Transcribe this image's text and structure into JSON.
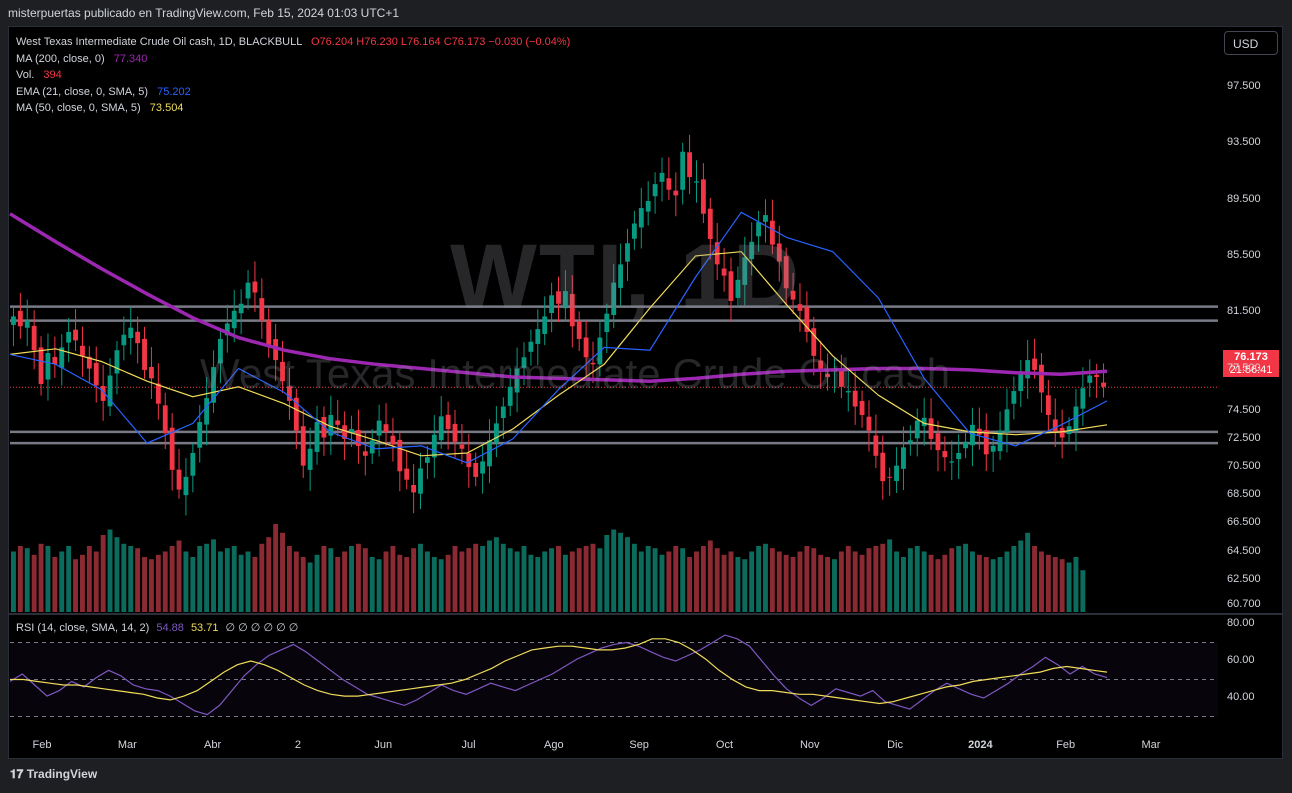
{
  "header": {
    "publish_line": "misterpuertas publicado en TradingView.com, Feb 15, 2024 01:03 UTC+1"
  },
  "legend": {
    "symbol_line": "West Texas Intermediate Crude Oil cash, 1D, BLACKBULL",
    "ohlc": "O76.204  H76.230  L76.164  C76.173  −0.030 (−0.04%)",
    "ma200_label": "MA (200, close, 0)",
    "ma200_value": "77.340",
    "vol_label": "Vol.",
    "vol_value": "394",
    "ema21_label": "EMA (21, close, 0, SMA, 5)",
    "ema21_value": "75.202",
    "ma50_label": "MA (50, close, 0, SMA, 5)",
    "ma50_value": "73.504"
  },
  "currency_button": "USD",
  "watermark": {
    "ticker": "WTI, 1D",
    "name": "West Texas Intermediate Crude Oil cash"
  },
  "price_tag": {
    "price": "76.173",
    "countdown": "21:56:41"
  },
  "rsi": {
    "label": "RSI (14, close, SMA, 14, 2)",
    "value1": "54.88",
    "value2": "53.71",
    "placeholders": "∅ ∅ ∅ ∅ ∅ ∅"
  },
  "footer": {
    "logo_text": "TradingView"
  },
  "colors": {
    "up": "#089981",
    "down": "#f23645",
    "ma200": "#9c27b0",
    "ema21": "#2962ff",
    "ma50": "#f0dc5a",
    "rsi": "#7e57c2",
    "rsi_ma": "#f0dc5a"
  },
  "chart_data": {
    "type": "candlestick",
    "y_ticks": [
      "97.500",
      "93.500",
      "89.500",
      "85.500",
      "81.500",
      "77.500",
      "74.500",
      "72.500",
      "70.500",
      "68.500",
      "66.500",
      "64.500",
      "62.500",
      "60.700"
    ],
    "x_ticks": [
      "Feb",
      "Mar",
      "Abr",
      "2",
      "Jun",
      "Jul",
      "Ago",
      "Sep",
      "Oct",
      "Nov",
      "Dic",
      "2024",
      "Feb",
      "Mar"
    ],
    "rsi_ticks": [
      "80.00",
      "60.00",
      "40.00"
    ],
    "horizontal_levels": [
      81.9,
      80.9,
      73.0,
      72.2
    ],
    "last_price": 76.173,
    "price_series_close": [
      81.2,
      80.5,
      80.9,
      78.8,
      76.4,
      78.6,
      77.8,
      79.0,
      80.1,
      79.5,
      78.4,
      77.5,
      76.3,
      75.2,
      77.0,
      78.8,
      79.9,
      80.4,
      79.3,
      77.4,
      76.8,
      75.0,
      72.9,
      70.3,
      68.9,
      69.8,
      71.5,
      73.7,
      75.4,
      77.6,
      79.6,
      80.7,
      81.6,
      82.1,
      83.6,
      82.9,
      80.9,
      79.2,
      78.1,
      76.6,
      75.2,
      73.1,
      70.6,
      71.8,
      73.7,
      72.6,
      74.2,
      73.5,
      72.5,
      73.2,
      72.0,
      71.3,
      72.4,
      73.8,
      73.0,
      72.1,
      70.2,
      69.6,
      68.7,
      70.4,
      71.2,
      72.8,
      74.1,
      73.2,
      72.3,
      71.8,
      70.5,
      69.8,
      70.9,
      72.4,
      73.6,
      74.8,
      76.2,
      77.5,
      78.3,
      79.4,
      80.3,
      81.2,
      82.7,
      82.1,
      83.0,
      80.5,
      79.6,
      78.3,
      77.8,
      79.7,
      81.4,
      83.6,
      84.9,
      86.4,
      87.8,
      88.9,
      89.4,
      90.6,
      91.4,
      90.2,
      89.8,
      92.9,
      91.1,
      90.8,
      88.5,
      86.7,
      84.9,
      84.1,
      82.3,
      83.8,
      85.4,
      86.5,
      87.9,
      88.4,
      86.3,
      85.1,
      83.2,
      82.4,
      81.6,
      80.1,
      78.4,
      77.3,
      76.9,
      77.4,
      76.2,
      75.9,
      74.8,
      74.2,
      73.1,
      71.3,
      69.5,
      69.8,
      70.6,
      71.9,
      72.4,
      73.8,
      74.0,
      72.5,
      71.7,
      71.2,
      70.9,
      71.5,
      72.3,
      73.5,
      72.8,
      71.4,
      72.0,
      73.1,
      74.6,
      75.9,
      77.2,
      78.1,
      77.4,
      75.8,
      74.2,
      73.0,
      72.6,
      73.4,
      74.8,
      76.1,
      77.0,
      76.9,
      76.2
    ],
    "ma200": [
      88.5,
      86.5,
      84.6,
      82.8,
      81.1,
      79.7,
      78.8,
      78.2,
      77.8,
      77.5,
      77.2,
      76.9,
      76.8,
      76.7,
      76.6,
      76.8,
      77.1,
      77.3,
      77.4,
      77.5,
      77.5,
      77.4,
      77.2,
      77.1,
      77.3
    ],
    "ema21": [
      78.5,
      77.8,
      76.0,
      72.2,
      73.6,
      77.5,
      75.8,
      73.0,
      71.8,
      72.0,
      70.8,
      72.5,
      76.0,
      79.0,
      78.8,
      84.0,
      88.6,
      86.8,
      85.8,
      82.5,
      76.8,
      72.9,
      72.0,
      73.5,
      75.2
    ],
    "ma50": [
      78.5,
      78.9,
      78.0,
      76.6,
      75.5,
      76.2,
      75.0,
      73.4,
      72.4,
      71.3,
      71.5,
      73.2,
      75.6,
      77.8,
      81.8,
      85.5,
      85.8,
      82.0,
      78.4,
      75.6,
      73.6,
      73.0,
      72.8,
      73.0,
      73.5
    ],
    "volume_relative": [
      0.55,
      0.6,
      0.58,
      0.52,
      0.62,
      0.6,
      0.5,
      0.55,
      0.6,
      0.48,
      0.52,
      0.6,
      0.55,
      0.7,
      0.75,
      0.68,
      0.62,
      0.6,
      0.58,
      0.5,
      0.48,
      0.52,
      0.55,
      0.6,
      0.65,
      0.55,
      0.5,
      0.6,
      0.62,
      0.66,
      0.55,
      0.58,
      0.6,
      0.52,
      0.55,
      0.5,
      0.62,
      0.68,
      0.8,
      0.72,
      0.6,
      0.55,
      0.5,
      0.45,
      0.52,
      0.6,
      0.58,
      0.5,
      0.55,
      0.6,
      0.62,
      0.58,
      0.5,
      0.48,
      0.55,
      0.6,
      0.52,
      0.5,
      0.58,
      0.62,
      0.55,
      0.5,
      0.48,
      0.52,
      0.6,
      0.55,
      0.58,
      0.62,
      0.6,
      0.65,
      0.68,
      0.62,
      0.58,
      0.55,
      0.6,
      0.52,
      0.5,
      0.55,
      0.58,
      0.6,
      0.52,
      0.55,
      0.58,
      0.6,
      0.62,
      0.58,
      0.7,
      0.75,
      0.72,
      0.68,
      0.62,
      0.55,
      0.6,
      0.58,
      0.52,
      0.55,
      0.6,
      0.58,
      0.5,
      0.55,
      0.6,
      0.65,
      0.58,
      0.52,
      0.55,
      0.5,
      0.48,
      0.55,
      0.6,
      0.62,
      0.58,
      0.55,
      0.52,
      0.5,
      0.55,
      0.6,
      0.58,
      0.52,
      0.5,
      0.48,
      0.55,
      0.6,
      0.55,
      0.52,
      0.58,
      0.6,
      0.62,
      0.66,
      0.55,
      0.5,
      0.58,
      0.6,
      0.55,
      0.52,
      0.48,
      0.52,
      0.58,
      0.6,
      0.62,
      0.55,
      0.52,
      0.5,
      0.48,
      0.5,
      0.55,
      0.6,
      0.65,
      0.72,
      0.6,
      0.55,
      0.52,
      0.5,
      0.48,
      0.45,
      0.5,
      0.38
    ],
    "rsi": [
      49,
      53,
      47,
      41,
      44,
      49,
      46,
      51,
      55,
      52,
      47,
      45,
      44,
      41,
      37,
      33,
      31,
      36,
      44,
      52,
      58,
      63,
      66,
      69,
      65,
      60,
      55,
      50,
      46,
      42,
      40,
      38,
      36,
      39,
      43,
      47,
      44,
      42,
      45,
      48,
      46,
      44,
      47,
      50,
      53,
      57,
      61,
      64,
      67,
      69,
      70,
      68,
      65,
      62,
      60,
      63,
      66,
      70,
      74,
      72,
      68,
      60,
      52,
      45,
      40,
      36,
      40,
      45,
      43,
      41,
      44,
      38,
      36,
      34,
      39,
      44,
      48,
      45,
      42,
      40,
      44,
      48,
      53,
      57,
      62,
      58,
      53,
      57,
      53,
      51
    ],
    "rsi_ma": [
      50,
      50,
      49,
      48,
      47,
      47,
      46,
      45,
      44,
      43,
      42,
      40,
      39,
      41,
      44,
      49,
      54,
      58,
      60,
      58,
      55,
      51,
      47,
      44,
      42,
      41,
      41,
      42,
      43,
      44,
      45,
      46,
      47,
      48,
      50,
      53,
      56,
      60,
      63,
      66,
      67,
      68,
      68,
      67,
      66,
      66,
      67,
      69,
      72,
      72,
      70,
      66,
      61,
      55,
      50,
      46,
      44,
      44,
      43,
      42,
      42,
      41,
      40,
      39,
      38,
      37,
      38,
      40,
      42,
      44,
      46,
      47,
      49,
      50,
      51,
      52,
      53,
      54,
      56,
      57,
      56,
      55,
      54
    ]
  }
}
